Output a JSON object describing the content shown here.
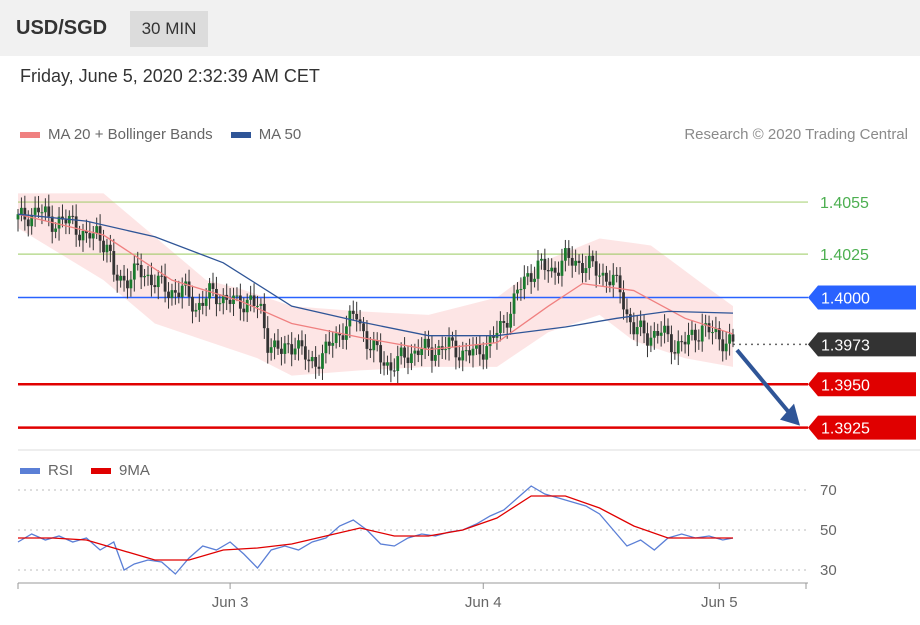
{
  "header": {
    "symbol": "USD/SGD",
    "timeframe": "30 MIN"
  },
  "datetime": "Friday, June 5, 2020 2:32:39 AM CET",
  "copyright": "Research © 2020 Trading Central",
  "colors": {
    "ma20": "#f08080",
    "bands": "#fde0e0",
    "ma50": "#2f5597",
    "resistance": "#8bc34a",
    "pivot": "#2962ff",
    "support": "#e00000",
    "current": "#333333",
    "rsi": "#5b7fd6",
    "rsi_ma": "#e00000",
    "arrow": "#2f5597"
  },
  "chart_data": [
    {
      "type": "candlestick",
      "legend": [
        "MA 20 + Bollinger Bands",
        "MA 50"
      ],
      "ylim": [
        1.3915,
        1.4085
      ],
      "x_ticks": [
        "Jun 3",
        "Jun 4",
        "Jun 5"
      ],
      "levels": [
        {
          "label": "1.4055",
          "value": 1.4055,
          "kind": "resistance"
        },
        {
          "label": "1.4025",
          "value": 1.4025,
          "kind": "resistance"
        },
        {
          "label": "1.4000",
          "value": 1.4,
          "kind": "pivot"
        },
        {
          "label": "1.3973",
          "value": 1.3973,
          "kind": "current"
        },
        {
          "label": "1.3950",
          "value": 1.395,
          "kind": "support"
        },
        {
          "label": "1.3925",
          "value": 1.3925,
          "kind": "support"
        }
      ],
      "price_path": [
        [
          0,
          1.4045
        ],
        [
          6,
          1.405
        ],
        [
          11,
          1.4043
        ],
        [
          16,
          1.4044
        ],
        [
          20,
          1.4033
        ],
        [
          23,
          1.4038
        ],
        [
          26,
          1.403
        ],
        [
          28,
          1.4012
        ],
        [
          31,
          1.401
        ],
        [
          35,
          1.4015
        ],
        [
          40,
          1.401
        ],
        [
          44,
          1.4003
        ],
        [
          48,
          1.4005
        ],
        [
          52,
          1.3994
        ],
        [
          56,
          1.4002
        ],
        [
          60,
          1.4
        ],
        [
          64,
          1.3996
        ],
        [
          68,
          1.3999
        ],
        [
          71,
          1.3991
        ],
        [
          73,
          1.3975
        ],
        [
          77,
          1.3968
        ],
        [
          81,
          1.3975
        ],
        [
          85,
          1.3962
        ],
        [
          89,
          1.3966
        ],
        [
          92,
          1.3975
        ],
        [
          96,
          1.3984
        ],
        [
          99,
          1.399
        ],
        [
          102,
          1.3975
        ],
        [
          106,
          1.3965
        ],
        [
          109,
          1.396
        ],
        [
          113,
          1.3966
        ],
        [
          117,
          1.397
        ],
        [
          121,
          1.3969
        ],
        [
          126,
          1.3972
        ],
        [
          130,
          1.3968
        ],
        [
          134,
          1.3968
        ],
        [
          138,
          1.3974
        ],
        [
          142,
          1.3985
        ],
        [
          145,
          1.3998
        ],
        [
          148,
          1.401
        ],
        [
          152,
          1.4018
        ],
        [
          156,
          1.4015
        ],
        [
          160,
          1.4022
        ],
        [
          164,
          1.402
        ],
        [
          168,
          1.4017
        ],
        [
          172,
          1.4012
        ],
        [
          176,
          1.4005
        ],
        [
          178,
          1.399
        ],
        [
          180,
          1.3982
        ],
        [
          184,
          1.3978
        ],
        [
          188,
          1.398
        ],
        [
          192,
          1.3972
        ],
        [
          196,
          1.3975
        ],
        [
          200,
          1.3983
        ],
        [
          204,
          1.3978
        ],
        [
          209,
          1.3973
        ]
      ],
      "ma20": [
        [
          0,
          1.4048
        ],
        [
          25,
          1.4036
        ],
        [
          45,
          1.401
        ],
        [
          65,
          1.3998
        ],
        [
          80,
          1.3985
        ],
        [
          100,
          1.3977
        ],
        [
          120,
          1.397
        ],
        [
          140,
          1.3974
        ],
        [
          155,
          1.3995
        ],
        [
          165,
          1.4008
        ],
        [
          180,
          1.4004
        ],
        [
          195,
          1.3988
        ],
        [
          209,
          1.3979
        ]
      ],
      "ma50": [
        [
          0,
          1.4048
        ],
        [
          20,
          1.4044
        ],
        [
          40,
          1.4035
        ],
        [
          60,
          1.402
        ],
        [
          80,
          1.3995
        ],
        [
          100,
          1.3986
        ],
        [
          120,
          1.3978
        ],
        [
          140,
          1.3978
        ],
        [
          160,
          1.3983
        ],
        [
          175,
          1.3988
        ],
        [
          190,
          1.3992
        ],
        [
          209,
          1.3991
        ]
      ],
      "bb_upper": [
        [
          0,
          1.406
        ],
        [
          25,
          1.406
        ],
        [
          40,
          1.4035
        ],
        [
          55,
          1.401
        ],
        [
          65,
          1.4005
        ],
        [
          80,
          1.3995
        ],
        [
          100,
          1.3992
        ],
        [
          120,
          1.399
        ],
        [
          140,
          1.4
        ],
        [
          155,
          1.4022
        ],
        [
          170,
          1.4034
        ],
        [
          185,
          1.403
        ],
        [
          200,
          1.4008
        ],
        [
          209,
          1.3995
        ]
      ],
      "bb_lower": [
        [
          0,
          1.404
        ],
        [
          25,
          1.401
        ],
        [
          40,
          1.3985
        ],
        [
          55,
          1.3975
        ],
        [
          70,
          1.3965
        ],
        [
          80,
          1.3955
        ],
        [
          100,
          1.3958
        ],
        [
          120,
          1.396
        ],
        [
          140,
          1.396
        ],
        [
          155,
          1.398
        ],
        [
          170,
          1.399
        ],
        [
          180,
          1.3975
        ],
        [
          195,
          1.3965
        ],
        [
          209,
          1.396
        ]
      ],
      "forecast_arrow": {
        "from": [
          209,
          1.3972
        ],
        "to": [
          230,
          1.3925
        ]
      }
    },
    {
      "type": "line",
      "legend": [
        "RSI",
        "9MA"
      ],
      "ylim": [
        20,
        80
      ],
      "y_ticks": [
        70,
        50,
        30
      ],
      "series": [
        {
          "name": "RSI",
          "values": [
            [
              0,
              44
            ],
            [
              4,
              48
            ],
            [
              8,
              45
            ],
            [
              12,
              47
            ],
            [
              16,
              44
            ],
            [
              20,
              46
            ],
            [
              24,
              40
            ],
            [
              28,
              44
            ],
            [
              31,
              30
            ],
            [
              34,
              33
            ],
            [
              38,
              35
            ],
            [
              42,
              34
            ],
            [
              46,
              28
            ],
            [
              50,
              36
            ],
            [
              54,
              42
            ],
            [
              58,
              40
            ],
            [
              62,
              44
            ],
            [
              66,
              38
            ],
            [
              70,
              31
            ],
            [
              74,
              40
            ],
            [
              78,
              42
            ],
            [
              82,
              40
            ],
            [
              86,
              44
            ],
            [
              90,
              46
            ],
            [
              94,
              52
            ],
            [
              98,
              55
            ],
            [
              102,
              50
            ],
            [
              106,
              43
            ],
            [
              110,
              42
            ],
            [
              114,
              46
            ],
            [
              118,
              48
            ],
            [
              122,
              47
            ],
            [
              126,
              49
            ],
            [
              130,
              50
            ],
            [
              134,
              53
            ],
            [
              138,
              57
            ],
            [
              142,
              60
            ],
            [
              146,
              66
            ],
            [
              150,
              72
            ],
            [
              154,
              68
            ],
            [
              158,
              66
            ],
            [
              162,
              64
            ],
            [
              166,
              62
            ],
            [
              170,
              58
            ],
            [
              174,
              50
            ],
            [
              178,
              42
            ],
            [
              182,
              45
            ],
            [
              186,
              40
            ],
            [
              190,
              46
            ],
            [
              194,
              48
            ],
            [
              198,
              46
            ],
            [
              202,
              47
            ],
            [
              206,
              45
            ],
            [
              209,
              46
            ]
          ]
        },
        {
          "name": "9MA",
          "values": [
            [
              0,
              46
            ],
            [
              10,
              46
            ],
            [
              20,
              45
            ],
            [
              30,
              40
            ],
            [
              40,
              35
            ],
            [
              50,
              35
            ],
            [
              60,
              40
            ],
            [
              70,
              41
            ],
            [
              80,
              43
            ],
            [
              90,
              47
            ],
            [
              100,
              51
            ],
            [
              110,
              47
            ],
            [
              120,
              47
            ],
            [
              130,
              50
            ],
            [
              140,
              56
            ],
            [
              150,
              67
            ],
            [
              160,
              67
            ],
            [
              170,
              61
            ],
            [
              180,
              52
            ],
            [
              190,
              46
            ],
            [
              200,
              46
            ],
            [
              209,
              46
            ]
          ]
        }
      ]
    }
  ]
}
